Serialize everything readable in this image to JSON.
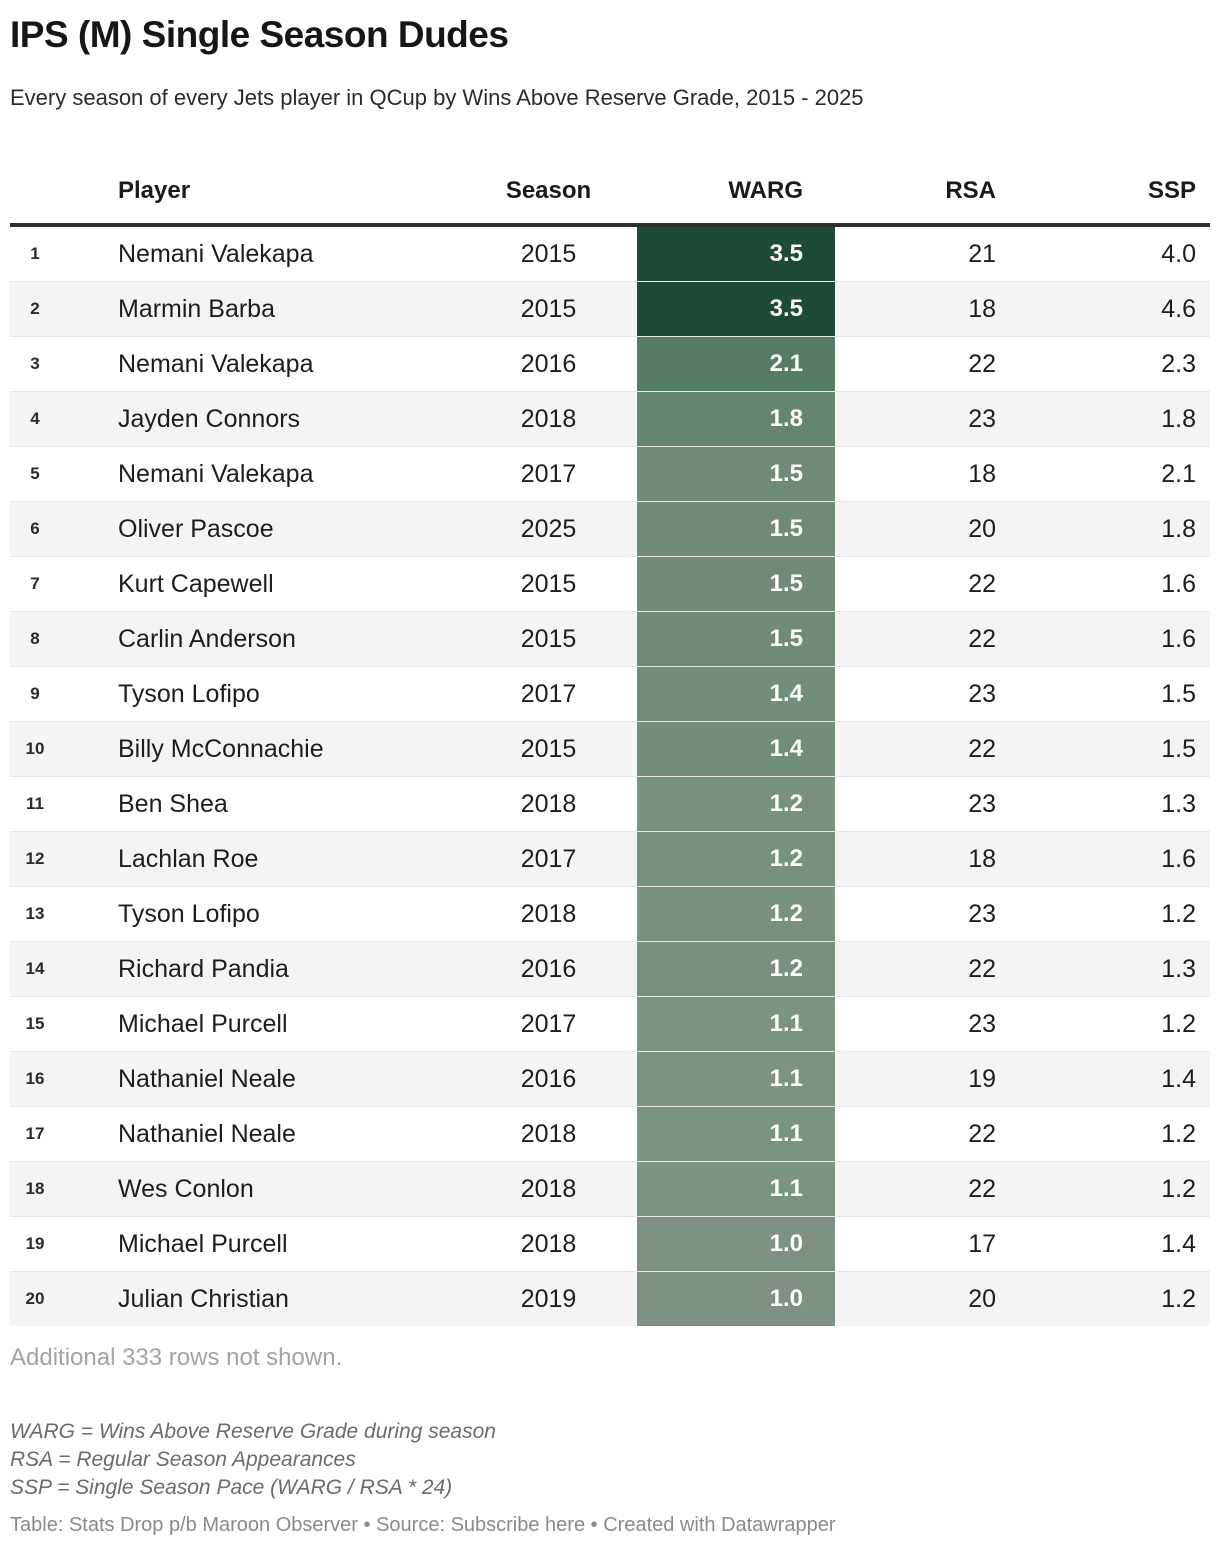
{
  "header": {
    "title": "IPS (M) Single Season Dudes",
    "subtitle": "Every season of every Jets player in QCup by Wins Above Reserve Grade, 2015 - 2025"
  },
  "chart_data": {
    "type": "table",
    "title": "IPS (M) Single Season Dudes",
    "heatmap_column": "WARG",
    "columns": [
      {
        "key": "rank",
        "label": ""
      },
      {
        "key": "player",
        "label": "Player"
      },
      {
        "key": "season",
        "label": "Season"
      },
      {
        "key": "warg",
        "label": "WARG"
      },
      {
        "key": "rsa",
        "label": "RSA"
      },
      {
        "key": "ssp",
        "label": "SSP"
      }
    ],
    "rows": [
      {
        "rank": "1",
        "player": "Nemani Valekapa",
        "season": "2015",
        "warg": "3.5",
        "rsa": "21",
        "ssp": "4.0",
        "warg_color": "#1e4b38"
      },
      {
        "rank": "2",
        "player": "Marmin Barba",
        "season": "2015",
        "warg": "3.5",
        "rsa": "18",
        "ssp": "4.6",
        "warg_color": "#1e4b38"
      },
      {
        "rank": "3",
        "player": "Nemani Valekapa",
        "season": "2016",
        "warg": "2.1",
        "rsa": "22",
        "ssp": "2.3",
        "warg_color": "#577c66"
      },
      {
        "rank": "4",
        "player": "Jayden Connors",
        "season": "2018",
        "warg": "1.8",
        "rsa": "23",
        "ssp": "1.8",
        "warg_color": "#65856f"
      },
      {
        "rank": "5",
        "player": "Nemani Valekapa",
        "season": "2017",
        "warg": "1.5",
        "rsa": "18",
        "ssp": "2.1",
        "warg_color": "#6f8b78"
      },
      {
        "rank": "6",
        "player": "Oliver Pascoe",
        "season": "2025",
        "warg": "1.5",
        "rsa": "20",
        "ssp": "1.8",
        "warg_color": "#6f8b78"
      },
      {
        "rank": "7",
        "player": "Kurt Capewell",
        "season": "2015",
        "warg": "1.5",
        "rsa": "22",
        "ssp": "1.6",
        "warg_color": "#6f8b78"
      },
      {
        "rank": "8",
        "player": "Carlin Anderson",
        "season": "2015",
        "warg": "1.5",
        "rsa": "22",
        "ssp": "1.6",
        "warg_color": "#6f8b78"
      },
      {
        "rank": "9",
        "player": "Tyson Lofipo",
        "season": "2017",
        "warg": "1.4",
        "rsa": "23",
        "ssp": "1.5",
        "warg_color": "#728d7a"
      },
      {
        "rank": "10",
        "player": "Billy McConnachie",
        "season": "2015",
        "warg": "1.4",
        "rsa": "22",
        "ssp": "1.5",
        "warg_color": "#728d7a"
      },
      {
        "rank": "11",
        "player": "Ben Shea",
        "season": "2018",
        "warg": "1.2",
        "rsa": "23",
        "ssp": "1.3",
        "warg_color": "#78917e"
      },
      {
        "rank": "12",
        "player": "Lachlan Roe",
        "season": "2017",
        "warg": "1.2",
        "rsa": "18",
        "ssp": "1.6",
        "warg_color": "#78917e"
      },
      {
        "rank": "13",
        "player": "Tyson Lofipo",
        "season": "2018",
        "warg": "1.2",
        "rsa": "23",
        "ssp": "1.2",
        "warg_color": "#78917e"
      },
      {
        "rank": "14",
        "player": "Richard Pandia",
        "season": "2016",
        "warg": "1.2",
        "rsa": "22",
        "ssp": "1.3",
        "warg_color": "#78917e"
      },
      {
        "rank": "15",
        "player": "Michael Purcell",
        "season": "2017",
        "warg": "1.1",
        "rsa": "23",
        "ssp": "1.2",
        "warg_color": "#7b9381"
      },
      {
        "rank": "16",
        "player": "Nathaniel Neale",
        "season": "2016",
        "warg": "1.1",
        "rsa": "19",
        "ssp": "1.4",
        "warg_color": "#7b9381"
      },
      {
        "rank": "17",
        "player": "Nathaniel Neale",
        "season": "2018",
        "warg": "1.1",
        "rsa": "22",
        "ssp": "1.2",
        "warg_color": "#7b9381"
      },
      {
        "rank": "18",
        "player": "Wes Conlon",
        "season": "2018",
        "warg": "1.1",
        "rsa": "22",
        "ssp": "1.2",
        "warg_color": "#7b9381"
      },
      {
        "rank": "19",
        "player": "Michael Purcell",
        "season": "2018",
        "warg": "1.0",
        "rsa": "17",
        "ssp": "1.4",
        "warg_color": "#7e9283"
      },
      {
        "rank": "20",
        "player": "Julian Christian",
        "season": "2019",
        "warg": "1.0",
        "rsa": "20",
        "ssp": "1.2",
        "warg_color": "#7e9283"
      }
    ]
  },
  "footer": {
    "more_rows": "Additional 333 rows not shown.",
    "notes": [
      "WARG = Wins Above Reserve Grade during season",
      "RSA = Regular Season Appearances",
      "SSP = Single Season Pace (WARG / RSA * 24)"
    ],
    "attribution": {
      "table_label": "Table: ",
      "table_source": "Stats Drop p/b Maroon Observer",
      "separator": " • ",
      "source_label": "Source: ",
      "source_link": "Subscribe here",
      "created_label": "Created with ",
      "created_link": "Datawrapper"
    }
  },
  "colors": {
    "header_rule": "#2e2e2e",
    "row_alt_background": "#f4f4f4",
    "warg_text": "#ffffff",
    "warg_dark_green": "#1e4b38",
    "warg_light_green": "#7e9283"
  }
}
